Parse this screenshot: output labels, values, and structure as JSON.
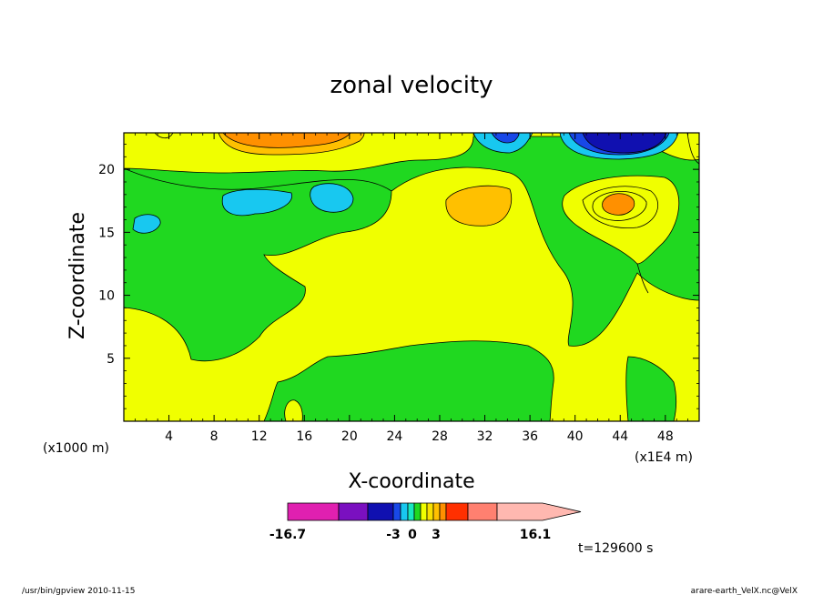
{
  "chart_data": {
    "type": "heatmap",
    "title": "zonal velocity",
    "xlabel": "X-coordinate",
    "ylabel": "Z-coordinate",
    "x_unit_left": "(x1000 m)",
    "x_unit_right": "(x1E4 m)",
    "xlim": [
      0,
      51
    ],
    "ylim": [
      0,
      22.9
    ],
    "x_ticks": [
      "4",
      "8",
      "12",
      "16",
      "20",
      "24",
      "28",
      "32",
      "36",
      "40",
      "44",
      "48"
    ],
    "x_tick_values": [
      4,
      8,
      12,
      16,
      20,
      24,
      28,
      32,
      36,
      40,
      44,
      48
    ],
    "y_ticks": [
      "5",
      "10",
      "15",
      "20"
    ],
    "y_tick_values": [
      5,
      10,
      15,
      20
    ],
    "colorbar": {
      "min_label": "-16.7",
      "max_label": "16.1",
      "mid_labels": [
        "-3",
        "0",
        "3"
      ],
      "min_value": -16.7,
      "max_value": 16.1,
      "mid_values": [
        -3,
        0,
        3
      ],
      "levels": [
        -16.7,
        -12,
        -9,
        -6,
        -3,
        -2,
        -1,
        0,
        1,
        2,
        3,
        6,
        9,
        12,
        16.1
      ],
      "colors": [
        "#e020b0",
        "#7a10c0",
        "#1010b0",
        "#1848e8",
        "#18c8f0",
        "#18e8c0",
        "#20d820",
        "#f0ff00",
        "#f8e000",
        "#ffc000",
        "#ff9000",
        "#ff3000",
        "#ff8070",
        "#ffb8b0"
      ]
    },
    "regions": [
      {
        "name": "u < 0 (lower left)",
        "value": -0.5,
        "color": "#20d820"
      },
      {
        "name": "u > 0 (centre)",
        "value": 0.5,
        "color": "#f0ff00"
      },
      {
        "name": "core near x=44e4, z=17.5",
        "value": 4,
        "color": "#ff9000"
      },
      {
        "name": "core near x=44e4, z=22",
        "value": -9,
        "color": "#1010b0"
      }
    ],
    "time_label": "t=129600 s"
  },
  "footer": {
    "left": "/usr/bin/gpview   2010-11-15",
    "right": "arare-earth_VelX.nc@VelX"
  }
}
